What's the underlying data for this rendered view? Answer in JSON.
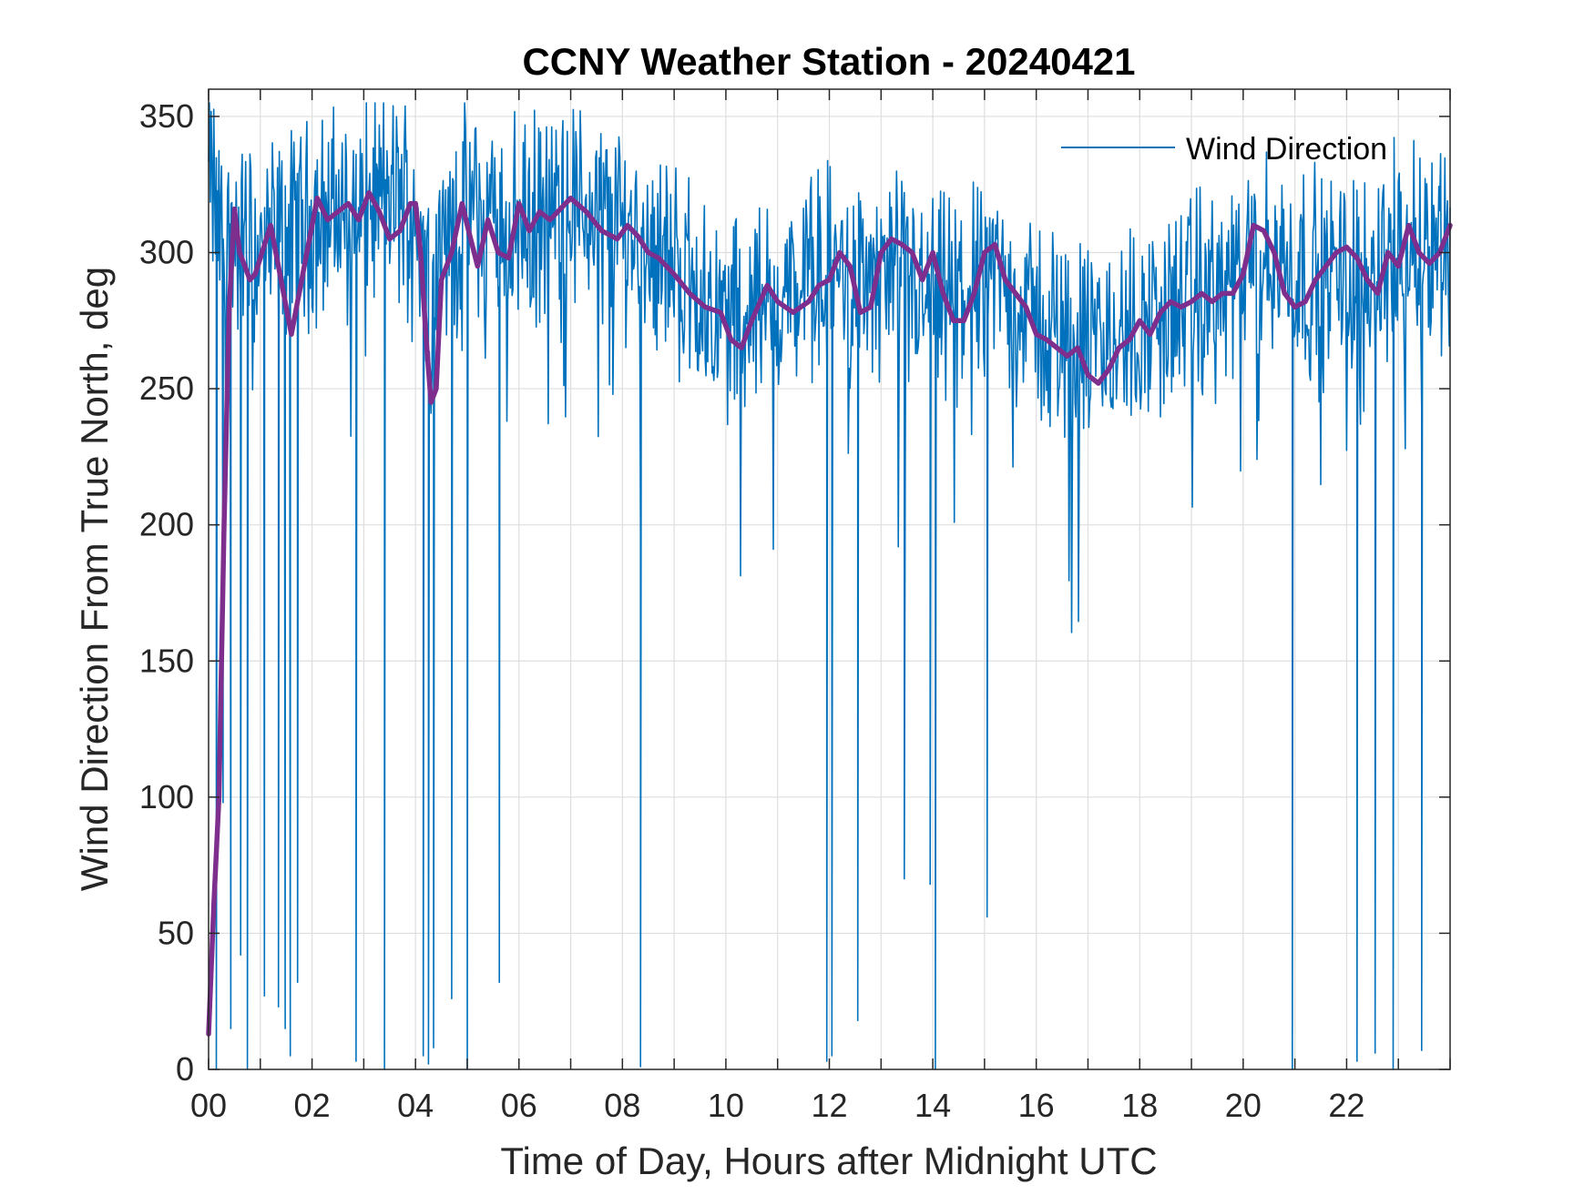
{
  "chart_data": {
    "type": "line",
    "title": "CCNY Weather Station - 20240421",
    "xlabel": "Time of Day, Hours after Midnight UTC",
    "ylabel": "Wind Direction From True North, deg",
    "xlim": [
      0,
      24
    ],
    "ylim": [
      0,
      360
    ],
    "x_ticks": [
      0,
      2,
      4,
      6,
      8,
      10,
      12,
      14,
      16,
      18,
      20,
      22
    ],
    "x_tick_labels": [
      "00",
      "02",
      "04",
      "06",
      "08",
      "10",
      "12",
      "14",
      "16",
      "18",
      "20",
      "22"
    ],
    "y_ticks": [
      0,
      50,
      100,
      150,
      200,
      250,
      300,
      350
    ],
    "y_tick_labels": [
      "0",
      "50",
      "100",
      "150",
      "200",
      "250",
      "300",
      "350"
    ],
    "grid": true,
    "legend": {
      "position": "top-right",
      "entries": [
        "Wind Direction"
      ]
    },
    "series": [
      {
        "name": "Wind Direction",
        "color": "#0072BD",
        "style": "thin-noisy",
        "x": [
          0,
          0.25,
          0.5,
          1,
          1.5,
          2,
          2.5,
          3,
          3.5,
          4,
          4.25,
          4.5,
          5,
          5.5,
          6,
          6.5,
          7,
          7.5,
          8,
          8.5,
          9,
          9.5,
          10,
          10.5,
          11,
          11.5,
          12,
          12.5,
          13,
          13.5,
          14,
          14.5,
          15,
          15.5,
          16,
          16.5,
          17,
          17.5,
          18,
          18.5,
          19,
          19.5,
          20,
          20.5,
          21,
          21.5,
          22,
          22.5,
          23,
          23.5,
          24
        ],
        "y": [
          330,
          305,
          305,
          300,
          305,
          312,
          315,
          318,
          320,
          318,
          290,
          300,
          315,
          312,
          310,
          312,
          318,
          315,
          310,
          305,
          295,
          285,
          275,
          280,
          282,
          288,
          295,
          290,
          290,
          288,
          280,
          285,
          295,
          285,
          275,
          270,
          265,
          268,
          272,
          278,
          282,
          285,
          290,
          298,
          295,
          290,
          292,
          295,
          300,
          305,
          305
        ],
        "dips": [
          {
            "x": 0.15,
            "y": 0
          },
          {
            "x": 0.28,
            "y": 98
          },
          {
            "x": 0.43,
            "y": 15
          },
          {
            "x": 0.62,
            "y": 42
          },
          {
            "x": 0.75,
            "y": 0
          },
          {
            "x": 1.08,
            "y": 27
          },
          {
            "x": 1.35,
            "y": 23
          },
          {
            "x": 1.48,
            "y": 15
          },
          {
            "x": 1.58,
            "y": 5
          },
          {
            "x": 1.72,
            "y": 32
          },
          {
            "x": 2.85,
            "y": 3
          },
          {
            "x": 3.4,
            "y": 0
          },
          {
            "x": 4.15,
            "y": 5
          },
          {
            "x": 4.25,
            "y": 2
          },
          {
            "x": 4.35,
            "y": 8
          },
          {
            "x": 4.7,
            "y": 26
          },
          {
            "x": 5.0,
            "y": 0
          },
          {
            "x": 5.62,
            "y": 32
          },
          {
            "x": 8.35,
            "y": 1
          },
          {
            "x": 11.95,
            "y": 3
          },
          {
            "x": 12.05,
            "y": 5
          },
          {
            "x": 12.55,
            "y": 18
          },
          {
            "x": 13.45,
            "y": 70
          },
          {
            "x": 13.95,
            "y": 68
          },
          {
            "x": 14.05,
            "y": 0
          },
          {
            "x": 15.05,
            "y": 56
          },
          {
            "x": 20.95,
            "y": 0
          },
          {
            "x": 22.2,
            "y": 3
          },
          {
            "x": 22.55,
            "y": 6
          },
          {
            "x": 22.9,
            "y": 0
          },
          {
            "x": 23.45,
            "y": 7
          }
        ]
      },
      {
        "name": "",
        "color": "#7E2F8E",
        "style": "thick-smoothed",
        "x": [
          0,
          0.1,
          0.2,
          0.3,
          0.4,
          0.5,
          0.6,
          0.7,
          0.8,
          0.9,
          1.0,
          1.2,
          1.4,
          1.6,
          1.75,
          1.9,
          2.1,
          2.3,
          2.5,
          2.7,
          2.9,
          3.1,
          3.3,
          3.5,
          3.7,
          3.9,
          4.0,
          4.1,
          4.2,
          4.3,
          4.4,
          4.5,
          4.7,
          4.9,
          5.0,
          5.2,
          5.4,
          5.6,
          5.8,
          6.0,
          6.2,
          6.4,
          6.6,
          6.8,
          7.0,
          7.3,
          7.6,
          7.9,
          8.1,
          8.3,
          8.5,
          8.7,
          9.0,
          9.3,
          9.6,
          9.9,
          10.1,
          10.3,
          10.5,
          10.8,
          11.0,
          11.3,
          11.6,
          11.8,
          12.0,
          12.2,
          12.4,
          12.6,
          12.8,
          13.0,
          13.2,
          13.4,
          13.6,
          13.8,
          14.0,
          14.2,
          14.4,
          14.6,
          14.8,
          15.0,
          15.2,
          15.4,
          15.6,
          15.8,
          16.0,
          16.2,
          16.4,
          16.6,
          16.8,
          17.0,
          17.2,
          17.4,
          17.6,
          17.8,
          18.0,
          18.2,
          18.4,
          18.6,
          18.8,
          19.0,
          19.2,
          19.4,
          19.6,
          19.8,
          20.0,
          20.2,
          20.4,
          20.6,
          20.8,
          21.0,
          21.2,
          21.4,
          21.6,
          21.8,
          22.0,
          22.2,
          22.4,
          22.6,
          22.8,
          23.0,
          23.2,
          23.4,
          23.6,
          23.8,
          24.0
        ],
        "y": [
          13,
          60,
          100,
          200,
          280,
          316,
          300,
          295,
          290,
          292,
          298,
          310,
          290,
          270,
          285,
          300,
          320,
          312,
          315,
          318,
          312,
          322,
          315,
          305,
          308,
          318,
          318,
          300,
          270,
          245,
          250,
          290,
          300,
          318,
          310,
          295,
          312,
          300,
          298,
          318,
          308,
          315,
          312,
          316,
          320,
          315,
          308,
          305,
          310,
          306,
          300,
          298,
          292,
          285,
          280,
          278,
          268,
          265,
          275,
          288,
          282,
          278,
          282,
          288,
          290,
          300,
          295,
          278,
          280,
          300,
          305,
          303,
          300,
          290,
          300,
          285,
          275,
          275,
          285,
          300,
          303,
          290,
          285,
          280,
          270,
          268,
          265,
          262,
          265,
          255,
          252,
          257,
          265,
          268,
          275,
          270,
          278,
          282,
          280,
          282,
          285,
          282,
          285,
          285,
          292,
          310,
          308,
          300,
          285,
          280,
          282,
          290,
          295,
          300,
          302,
          298,
          290,
          285,
          300,
          295,
          310,
          300,
          296,
          300,
          310
        ]
      }
    ]
  }
}
